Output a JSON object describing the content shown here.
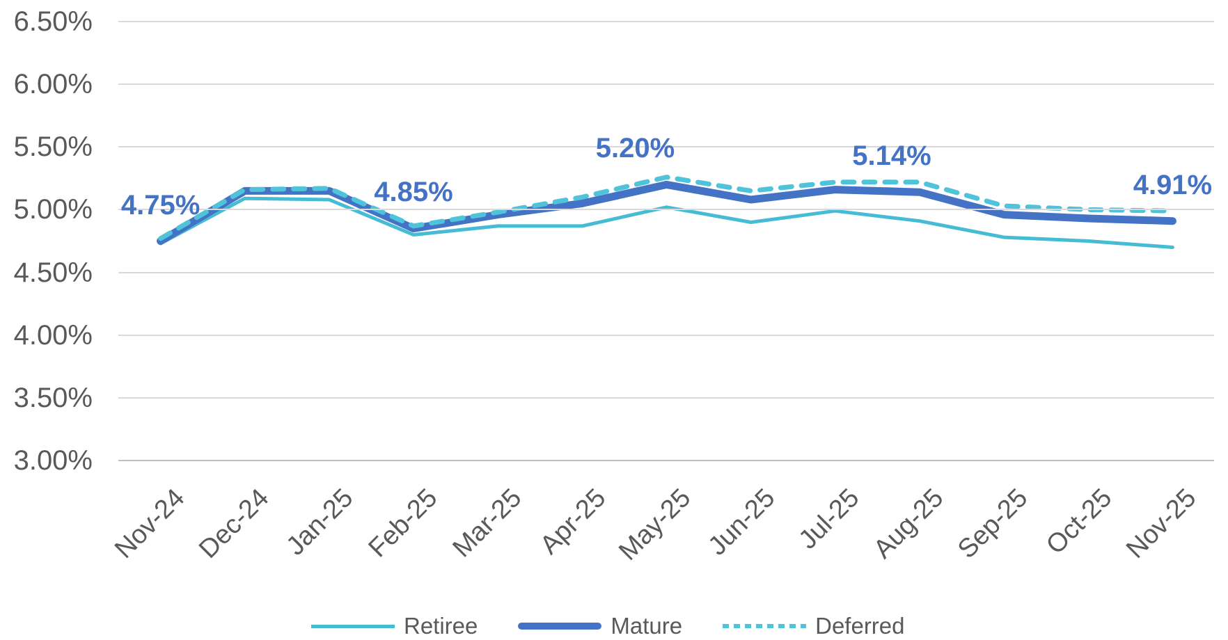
{
  "chart_data": {
    "type": "line",
    "title": "",
    "categories": [
      "Nov-24",
      "Dec-24",
      "Jan-25",
      "Feb-25",
      "Mar-25",
      "Apr-25",
      "May-25",
      "Jun-25",
      "Jul-25",
      "Aug-25",
      "Sep-25",
      "Oct-25",
      "Nov-25"
    ],
    "y_axis": {
      "ticks": [
        "6.50%",
        "6.00%",
        "5.50%",
        "5.00%",
        "4.50%",
        "4.00%",
        "3.50%",
        "3.00%"
      ],
      "max": 6.5,
      "min": 3.0,
      "step": 0.5,
      "format": "percent"
    },
    "series": [
      {
        "name": "Retiree",
        "style": "solid-thin",
        "color": "#45BCD4",
        "values": [
          4.73,
          5.09,
          5.08,
          4.8,
          4.87,
          4.87,
          5.02,
          4.9,
          4.99,
          4.91,
          4.78,
          4.75,
          4.7
        ]
      },
      {
        "name": "Mature",
        "style": "solid-thick",
        "color": "#4472C4",
        "values": [
          4.75,
          5.15,
          5.15,
          4.85,
          4.96,
          5.05,
          5.2,
          5.08,
          5.16,
          5.14,
          4.96,
          4.93,
          4.91
        ]
      },
      {
        "name": "Deferred",
        "style": "dashed",
        "color": "#4EC3DA",
        "values": [
          4.77,
          5.16,
          5.17,
          4.87,
          4.98,
          5.1,
          5.26,
          5.15,
          5.22,
          5.22,
          5.03,
          5.0,
          4.99
        ]
      }
    ],
    "data_labels": [
      {
        "series": "Mature",
        "category": "Nov-24",
        "index": 0,
        "text": "4.75%",
        "dx": 0
      },
      {
        "series": "Mature",
        "category": "Feb-25",
        "index": 3,
        "text": "4.85%",
        "dx": 0
      },
      {
        "series": "Mature",
        "category": "May-25",
        "index": 6,
        "text": "5.20%",
        "dx": -45
      },
      {
        "series": "Mature",
        "category": "Aug-25",
        "index": 9,
        "text": "5.14%",
        "dx": -40
      },
      {
        "series": "Mature",
        "category": "Nov-25",
        "index": 12,
        "text": "4.91%",
        "dx": 0
      }
    ],
    "legend_position": "bottom",
    "grid": "horizontal",
    "colors": {
      "axis_text": "#595959",
      "gridline": "#D9D9D9",
      "axis_line": "#BFBFBF",
      "data_label": "#4472C4",
      "background": "#FFFFFF"
    }
  }
}
